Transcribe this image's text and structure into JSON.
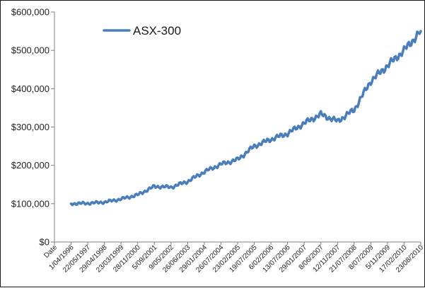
{
  "chart_data": {
    "type": "line",
    "title": "",
    "xlabel": "",
    "ylabel": "",
    "ylim": [
      0,
      600000
    ],
    "y_ticks": [
      {
        "value": 0,
        "label": "$0"
      },
      {
        "value": 100000,
        "label": "$100,000"
      },
      {
        "value": 200000,
        "label": "$200,000"
      },
      {
        "value": 300000,
        "label": "$300,000"
      },
      {
        "value": 400000,
        "label": "$400,000"
      },
      {
        "value": 500000,
        "label": "$500,000"
      },
      {
        "value": 600000,
        "label": "$600,000"
      }
    ],
    "x_tick_labels": [
      "Date",
      "1/04/1996",
      "22/05/1997",
      "29/04/1998",
      "23/03/1999",
      "28/11/2000",
      "5/09/2001",
      "9/05/2002",
      "26/06/2003",
      "29/01/2004",
      "26/07/2004",
      "23/02/2005",
      "19/07/2005",
      "6/02/2006",
      "13/07/2006",
      "29/01/2007",
      "8/06/2007",
      "12/11/2007",
      "21/07/2008",
      "8/07/2009",
      "5/11/2009",
      "17/02/2010",
      "23/08/2010"
    ],
    "grid": false,
    "legend_position": "top-left",
    "line_color": "#4a7ebb",
    "series": [
      {
        "name": "ASX-300",
        "x": [
          "1/04/1996",
          "22/05/1997",
          "29/04/1998",
          "23/03/1999",
          "28/11/2000",
          "5/09/2001",
          "9/05/2002",
          "26/06/2003",
          "29/01/2004",
          "26/07/2004",
          "23/02/2005",
          "19/07/2005",
          "6/02/2006",
          "13/07/2006",
          "29/01/2007",
          "8/06/2007",
          "12/11/2007",
          "21/07/2008",
          "8/07/2009",
          "5/11/2009",
          "17/02/2010",
          "23/08/2010"
        ],
        "values": [
          100000,
          101000,
          104000,
          112000,
          123000,
          145000,
          143000,
          158000,
          183000,
          203000,
          215000,
          250000,
          268000,
          283000,
          310000,
          333000,
          315000,
          345000,
          420000,
          460000,
          500000,
          550000
        ]
      }
    ]
  }
}
